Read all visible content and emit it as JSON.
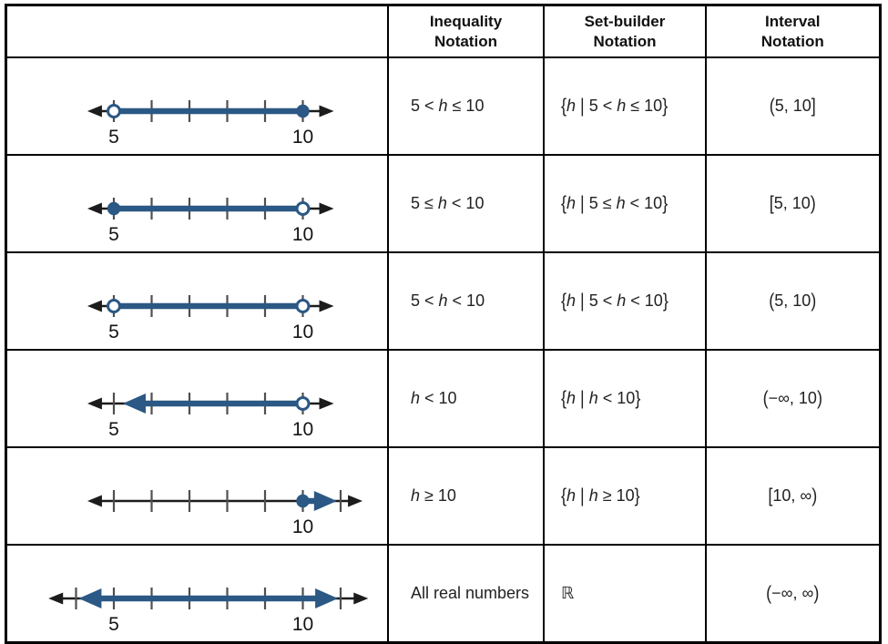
{
  "colors": {
    "accent_blue": "#2b5884",
    "tick_gray": "#4f4f4f",
    "axis_black": "#1c1c1c",
    "label_black": "#141414",
    "border_black": "#000000"
  },
  "table": {
    "headers": {
      "numberline": "",
      "inequality": "Inequality\nNotation",
      "set_builder": "Set-builder\nNotation",
      "interval": "Interval\nNotation"
    },
    "rows": [
      {
        "inequality": "5 < h ≤ 10",
        "set_builder": "{h | 5 < h ≤ 10}",
        "interval": "(5, 10]",
        "numberline": {
          "axis_from": 4.3,
          "axis_to": 10.82,
          "ticks": [
            5,
            6,
            7,
            8,
            9,
            10
          ],
          "labels": [
            {
              "at": 5,
              "text": "5"
            },
            {
              "at": 10,
              "text": "10"
            }
          ],
          "segment": {
            "from": 5,
            "to": 10,
            "from_end": "open",
            "to_end": "closed"
          }
        }
      },
      {
        "inequality": "5 ≤ h < 10",
        "set_builder": "{h | 5 ≤ h < 10}",
        "interval": "[5, 10)",
        "numberline": {
          "axis_from": 4.3,
          "axis_to": 10.82,
          "ticks": [
            5,
            6,
            7,
            8,
            9,
            10
          ],
          "labels": [
            {
              "at": 5,
              "text": "5"
            },
            {
              "at": 10,
              "text": "10"
            }
          ],
          "segment": {
            "from": 5,
            "to": 10,
            "from_end": "closed",
            "to_end": "open"
          }
        }
      },
      {
        "inequality": "5 < h < 10",
        "set_builder": "{h | 5 < h < 10}",
        "interval": "(5, 10)",
        "numberline": {
          "axis_from": 4.3,
          "axis_to": 10.82,
          "ticks": [
            5,
            6,
            7,
            8,
            9,
            10
          ],
          "labels": [
            {
              "at": 5,
              "text": "5"
            },
            {
              "at": 10,
              "text": "10"
            }
          ],
          "segment": {
            "from": 5,
            "to": 10,
            "from_end": "open",
            "to_end": "open"
          }
        }
      },
      {
        "inequality": "h < 10",
        "set_builder": "{h | h < 10}",
        "interval": "(−∞, 10)",
        "numberline": {
          "axis_from": 4.3,
          "axis_to": 10.82,
          "ticks": [
            5,
            6,
            7,
            8,
            9,
            10
          ],
          "labels": [
            {
              "at": 5,
              "text": "5"
            },
            {
              "at": 10,
              "text": "10"
            }
          ],
          "segment": {
            "from": 5.24,
            "to": 10,
            "from_end": "arrow",
            "to_end": "open"
          }
        }
      },
      {
        "inequality": "h ≥ 10",
        "set_builder": "{h | h ≥ 10}",
        "interval": "[10, ∞)",
        "numberline": {
          "axis_from": 4.3,
          "axis_to": 11.58,
          "ticks": [
            5,
            6,
            7,
            8,
            9,
            10,
            11
          ],
          "labels": [
            {
              "at": 10,
              "text": "10"
            }
          ],
          "segment": {
            "from": 10,
            "to": 10.9,
            "from_end": "closed",
            "to_end": "arrow"
          }
        }
      },
      {
        "inequality": "All real numbers",
        "set_builder": "ℝ",
        "interval": "(−∞, ∞)",
        "numberline": {
          "axis_from": 3.27,
          "axis_to": 11.73,
          "ticks": [
            4,
            5,
            6,
            7,
            8,
            9,
            10,
            11
          ],
          "labels": [
            {
              "at": 5,
              "text": "5"
            },
            {
              "at": 10,
              "text": "10"
            }
          ],
          "segment": {
            "from": 4.07,
            "to": 10.93,
            "from_end": "arrow",
            "to_end": "arrow"
          }
        }
      }
    ]
  }
}
